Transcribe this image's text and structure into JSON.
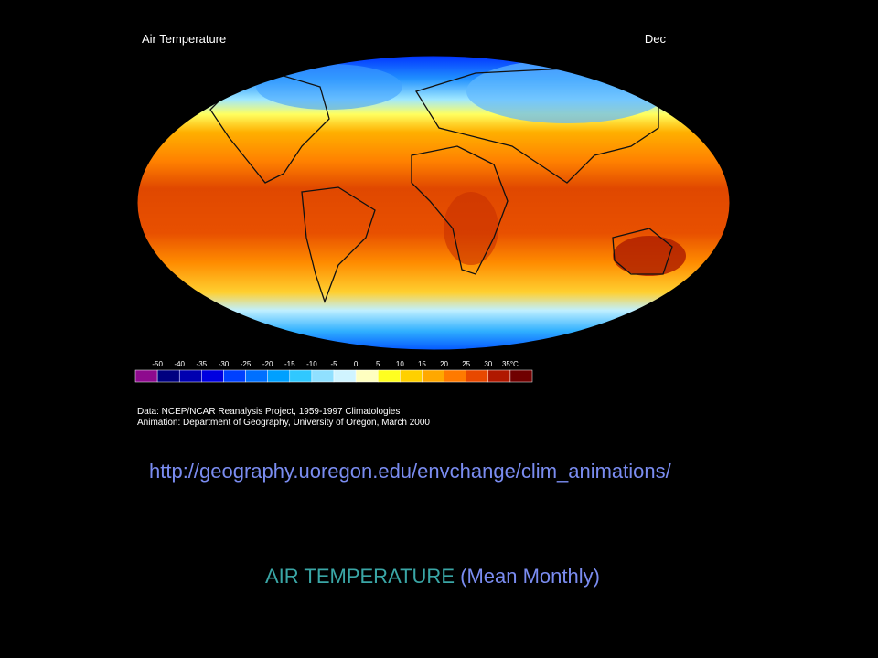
{
  "map": {
    "title": "Air Temperature",
    "month": "Dec",
    "legend": {
      "labels": [
        "-50",
        "-40",
        "-35",
        "-30",
        "-25",
        "-20",
        "-15",
        "-10",
        "-5",
        "0",
        "5",
        "10",
        "15",
        "20",
        "25",
        "30",
        "35°C"
      ],
      "colors": [
        "#8e0a8e",
        "#000080",
        "#0000b0",
        "#0000e0",
        "#0040ff",
        "#0070ff",
        "#00a0ff",
        "#30c8ff",
        "#90e0ff",
        "#d0f4ff",
        "#ffffc0",
        "#ffff20",
        "#ffd000",
        "#ffa800",
        "#ff7a00",
        "#e84800",
        "#b01800",
        "#700000"
      ]
    },
    "credits": [
      "Data: NCEP/NCAR Reanalysis Project, 1959-1997 Climatologies",
      "Animation: Department of Geography, University of Oregon, March 2000"
    ]
  },
  "slide": {
    "url": "http://geography.uoregon.edu/envchange/clim_animations/",
    "caption_main": "AIR TEMPERATURE",
    "caption_sub": "(Mean Monthly)"
  }
}
